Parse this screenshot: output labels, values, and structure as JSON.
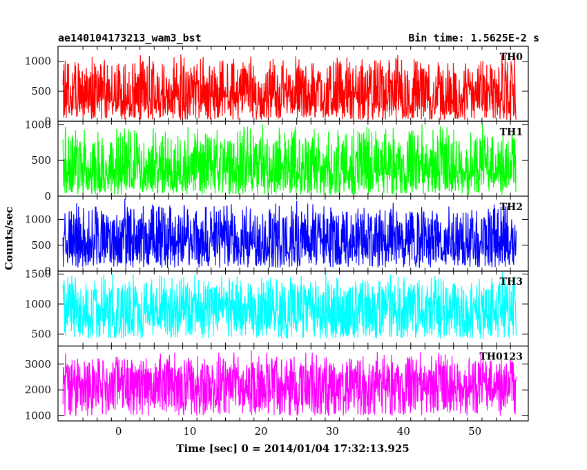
{
  "chart_data": {
    "type": "line",
    "title": "ae140104173213_wam3_bst",
    "subtitle": "Bin time: 1.5625E-2 s",
    "xlabel": "Time [sec] 0 = 2014/01/04 17:32:13.925",
    "ylabel": "Counts/sec",
    "xlim": [
      -8.5,
      57.5
    ],
    "x_ticks": [
      0,
      10,
      20,
      30,
      40,
      50
    ],
    "x_tick_labels": [
      "0",
      "10",
      "20",
      "30",
      "40",
      "50"
    ],
    "data_x_range": [
      -7.8,
      55.8
    ],
    "grid": false,
    "panels": [
      {
        "name": "TH0",
        "color": "#ff0000",
        "ylim": [
          0,
          1250
        ],
        "yticks": [
          0,
          500,
          1000
        ],
        "ytick_labels": [
          "0",
          "500",
          "1000"
        ],
        "mean": 420,
        "noise_low": 20,
        "noise_high": 1150
      },
      {
        "name": "TH1",
        "color": "#00ff00",
        "ylim": [
          0,
          1050
        ],
        "yticks": [
          0,
          500,
          1000
        ],
        "ytick_labels": [
          "0",
          "500",
          "1000"
        ],
        "mean": 380,
        "noise_low": 20,
        "noise_high": 1050
      },
      {
        "name": "TH2",
        "color": "#0000ff",
        "ylim": [
          0,
          1450
        ],
        "yticks": [
          0,
          500,
          1000
        ],
        "ytick_labels": [
          "0",
          "500",
          "1000"
        ],
        "mean": 560,
        "noise_low": 60,
        "noise_high": 1400
      },
      {
        "name": "TH3",
        "color": "#00ffff",
        "ylim": [
          300,
          1550
        ],
        "yticks": [
          500,
          1000,
          1500
        ],
        "ytick_labels": [
          "500",
          "1000",
          "1500"
        ],
        "mean": 880,
        "noise_low": 420,
        "noise_high": 1550
      },
      {
        "name": "TH0123",
        "color": "#ff00ff",
        "ylim": [
          800,
          3700
        ],
        "yticks": [
          1000,
          2000,
          3000
        ],
        "ytick_labels": [
          "1000",
          "2000",
          "3000"
        ],
        "mean": 2250,
        "noise_low": 1000,
        "noise_high": 3550
      }
    ]
  }
}
